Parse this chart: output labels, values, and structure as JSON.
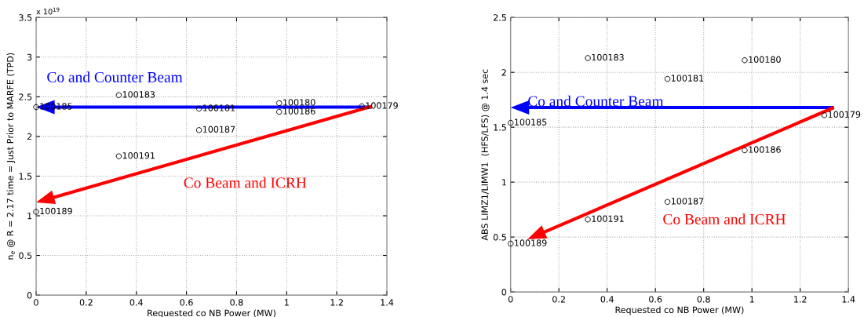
{
  "chart_data": [
    {
      "type": "scatter",
      "xlabel": "Requested co NB Power (MW)",
      "ylabel": "n$_{e}$ @ R = 2.17 time = Just Prior to MARFE (TPD)",
      "x": [
        0,
        0.33,
        0.65,
        0.97,
        0.97,
        0.65,
        0.33,
        0,
        1.3
      ],
      "series": [
        {
          "color": "#000000",
          "values": [
            2.37,
            2.52,
            2.35,
            2.42,
            2.31,
            2.08,
            1.75,
            1.05,
            2.38
          ]
        }
      ],
      "xlim": [
        0,
        1.4
      ],
      "xticks": [
        0,
        0.2,
        0.4,
        0.6,
        0.8,
        1,
        1.2,
        1.4
      ],
      "ylim": [
        0,
        3.5
      ],
      "yticks": [
        0,
        0.5,
        1,
        1.5,
        2,
        2.5,
        3,
        3.5
      ],
      "grid": true,
      "marker": "circle",
      "annotations": [
        "x 10$^{19}$",
        "Co and Counter Beam",
        "Co Beam and ICRH",
        {
          "text": "100185",
          "x": 0,
          "y": 2.37
        },
        {
          "text": "100183",
          "x": 0.33,
          "y": 2.52
        },
        {
          "text": "100181",
          "x": 0.65,
          "y": 2.35
        },
        {
          "text": "100180",
          "x": 0.97,
          "y": 2.42
        },
        {
          "text": "100186",
          "x": 0.97,
          "y": 2.31
        },
        {
          "text": "100187",
          "x": 0.65,
          "y": 2.08
        },
        {
          "text": "100191",
          "x": 0.33,
          "y": 1.75
        },
        {
          "text": "100189",
          "x": 0,
          "y": 1.05
        },
        {
          "text": "100179",
          "x": 1.3,
          "y": 2.38
        }
      ]
    },
    {
      "type": "scatter",
      "xlabel": "Requested co NB Power (MW)",
      "ylabel": "ABS LIMZ1/LIMW1  (HFS/LFS) @ 1.4 sec",
      "x": [
        0.32,
        0.97,
        0.65,
        0,
        1.3,
        0.97,
        0.65,
        0.32,
        0
      ],
      "series": [
        {
          "color": "#000000",
          "values": [
            2.13,
            2.11,
            1.94,
            1.54,
            1.61,
            1.29,
            0.82,
            0.66,
            0.44
          ]
        }
      ],
      "xlim": [
        0,
        1.4
      ],
      "xticks": [
        0,
        0.2,
        0.4,
        0.6,
        0.8,
        1,
        1.2,
        1.4
      ],
      "ylim": [
        0,
        2.5
      ],
      "yticks": [
        0,
        0.5,
        1,
        1.5,
        2,
        2.5
      ],
      "grid": true,
      "marker": "circle",
      "annotations": [
        "Co and Counter Beam",
        "Co Beam and ICRH",
        {
          "text": "100183",
          "x": 0.32,
          "y": 2.13
        },
        {
          "text": "100180",
          "x": 0.97,
          "y": 2.11
        },
        {
          "text": "100181",
          "x": 0.65,
          "y": 1.94
        },
        {
          "text": "100185",
          "x": 0,
          "y": 1.54
        },
        {
          "text": "100179",
          "x": 1.3,
          "y": 1.61
        },
        {
          "text": "100186",
          "x": 0.97,
          "y": 1.29
        },
        {
          "text": "100187",
          "x": 0.65,
          "y": 0.82
        },
        {
          "text": "100191",
          "x": 0.32,
          "y": 0.66
        },
        {
          "text": "100189",
          "x": 0,
          "y": 0.44
        }
      ]
    }
  ]
}
